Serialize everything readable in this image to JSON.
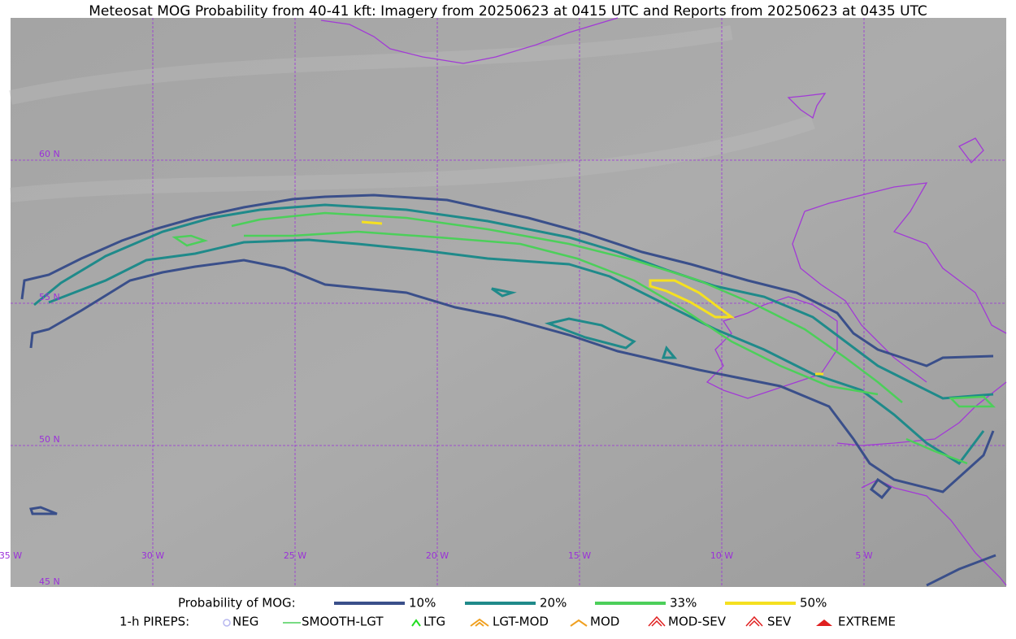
{
  "title": "Meteosat MOG Probability from 40-41 kft: Imagery from 20250623 at 0415 UTC and Reports from 20250623 at 0435 UTC",
  "latitude_labels": [
    "60 N",
    "55 N",
    "50 N",
    "45 N"
  ],
  "longitude_labels": [
    "35 W",
    "30 W",
    "25 W",
    "20 W",
    "15 W",
    "10 W",
    "5 W"
  ],
  "legend": {
    "probability_title": "Probability of MOG:",
    "probability_levels": [
      "10%",
      "20%",
      "33%",
      "50%"
    ],
    "pireps_title": "1-h PIREPS:",
    "pirep_types": [
      "NEG",
      "SMOOTH-LGT",
      "LTG",
      "LGT-MOD",
      "MOD",
      "MOD-SEV",
      "SEV",
      "EXTREME"
    ]
  }
}
